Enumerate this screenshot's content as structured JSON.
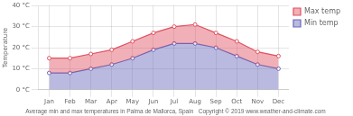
{
  "chart_data": {
    "type": "line",
    "subtitle": "Average min and max temperatures in Palma de Mallorca, Spain   Copyright © 2019 www.weather-and-climate.com",
    "y_label": "Temperature",
    "categories": [
      "Jan",
      "Feb",
      "Mar",
      "Apr",
      "May",
      "Jun",
      "Jul",
      "Aug",
      "Sep",
      "Oct",
      "Nov",
      "Dec"
    ],
    "series": [
      {
        "name": "Max temp",
        "color": "#e05060",
        "values": [
          15,
          15,
          17,
          19,
          23,
          27,
          30,
          31,
          27,
          23,
          18,
          16
        ]
      },
      {
        "name": "Min temp",
        "color": "#6666bb",
        "values": [
          8,
          8,
          10,
          12,
          15,
          19,
          22,
          22,
          20,
          16,
          12,
          10
        ]
      }
    ],
    "ylim": [
      0,
      40
    ],
    "yticks": [
      {
        "value": 0,
        "label": "0 °C"
      },
      {
        "value": 10,
        "label": "10 °C"
      },
      {
        "value": 20,
        "label": "20 °C"
      },
      {
        "value": 30,
        "label": "30 °C"
      },
      {
        "value": 40,
        "label": "40 °C"
      }
    ],
    "grid": true,
    "legend": "right",
    "marker": "circle"
  }
}
